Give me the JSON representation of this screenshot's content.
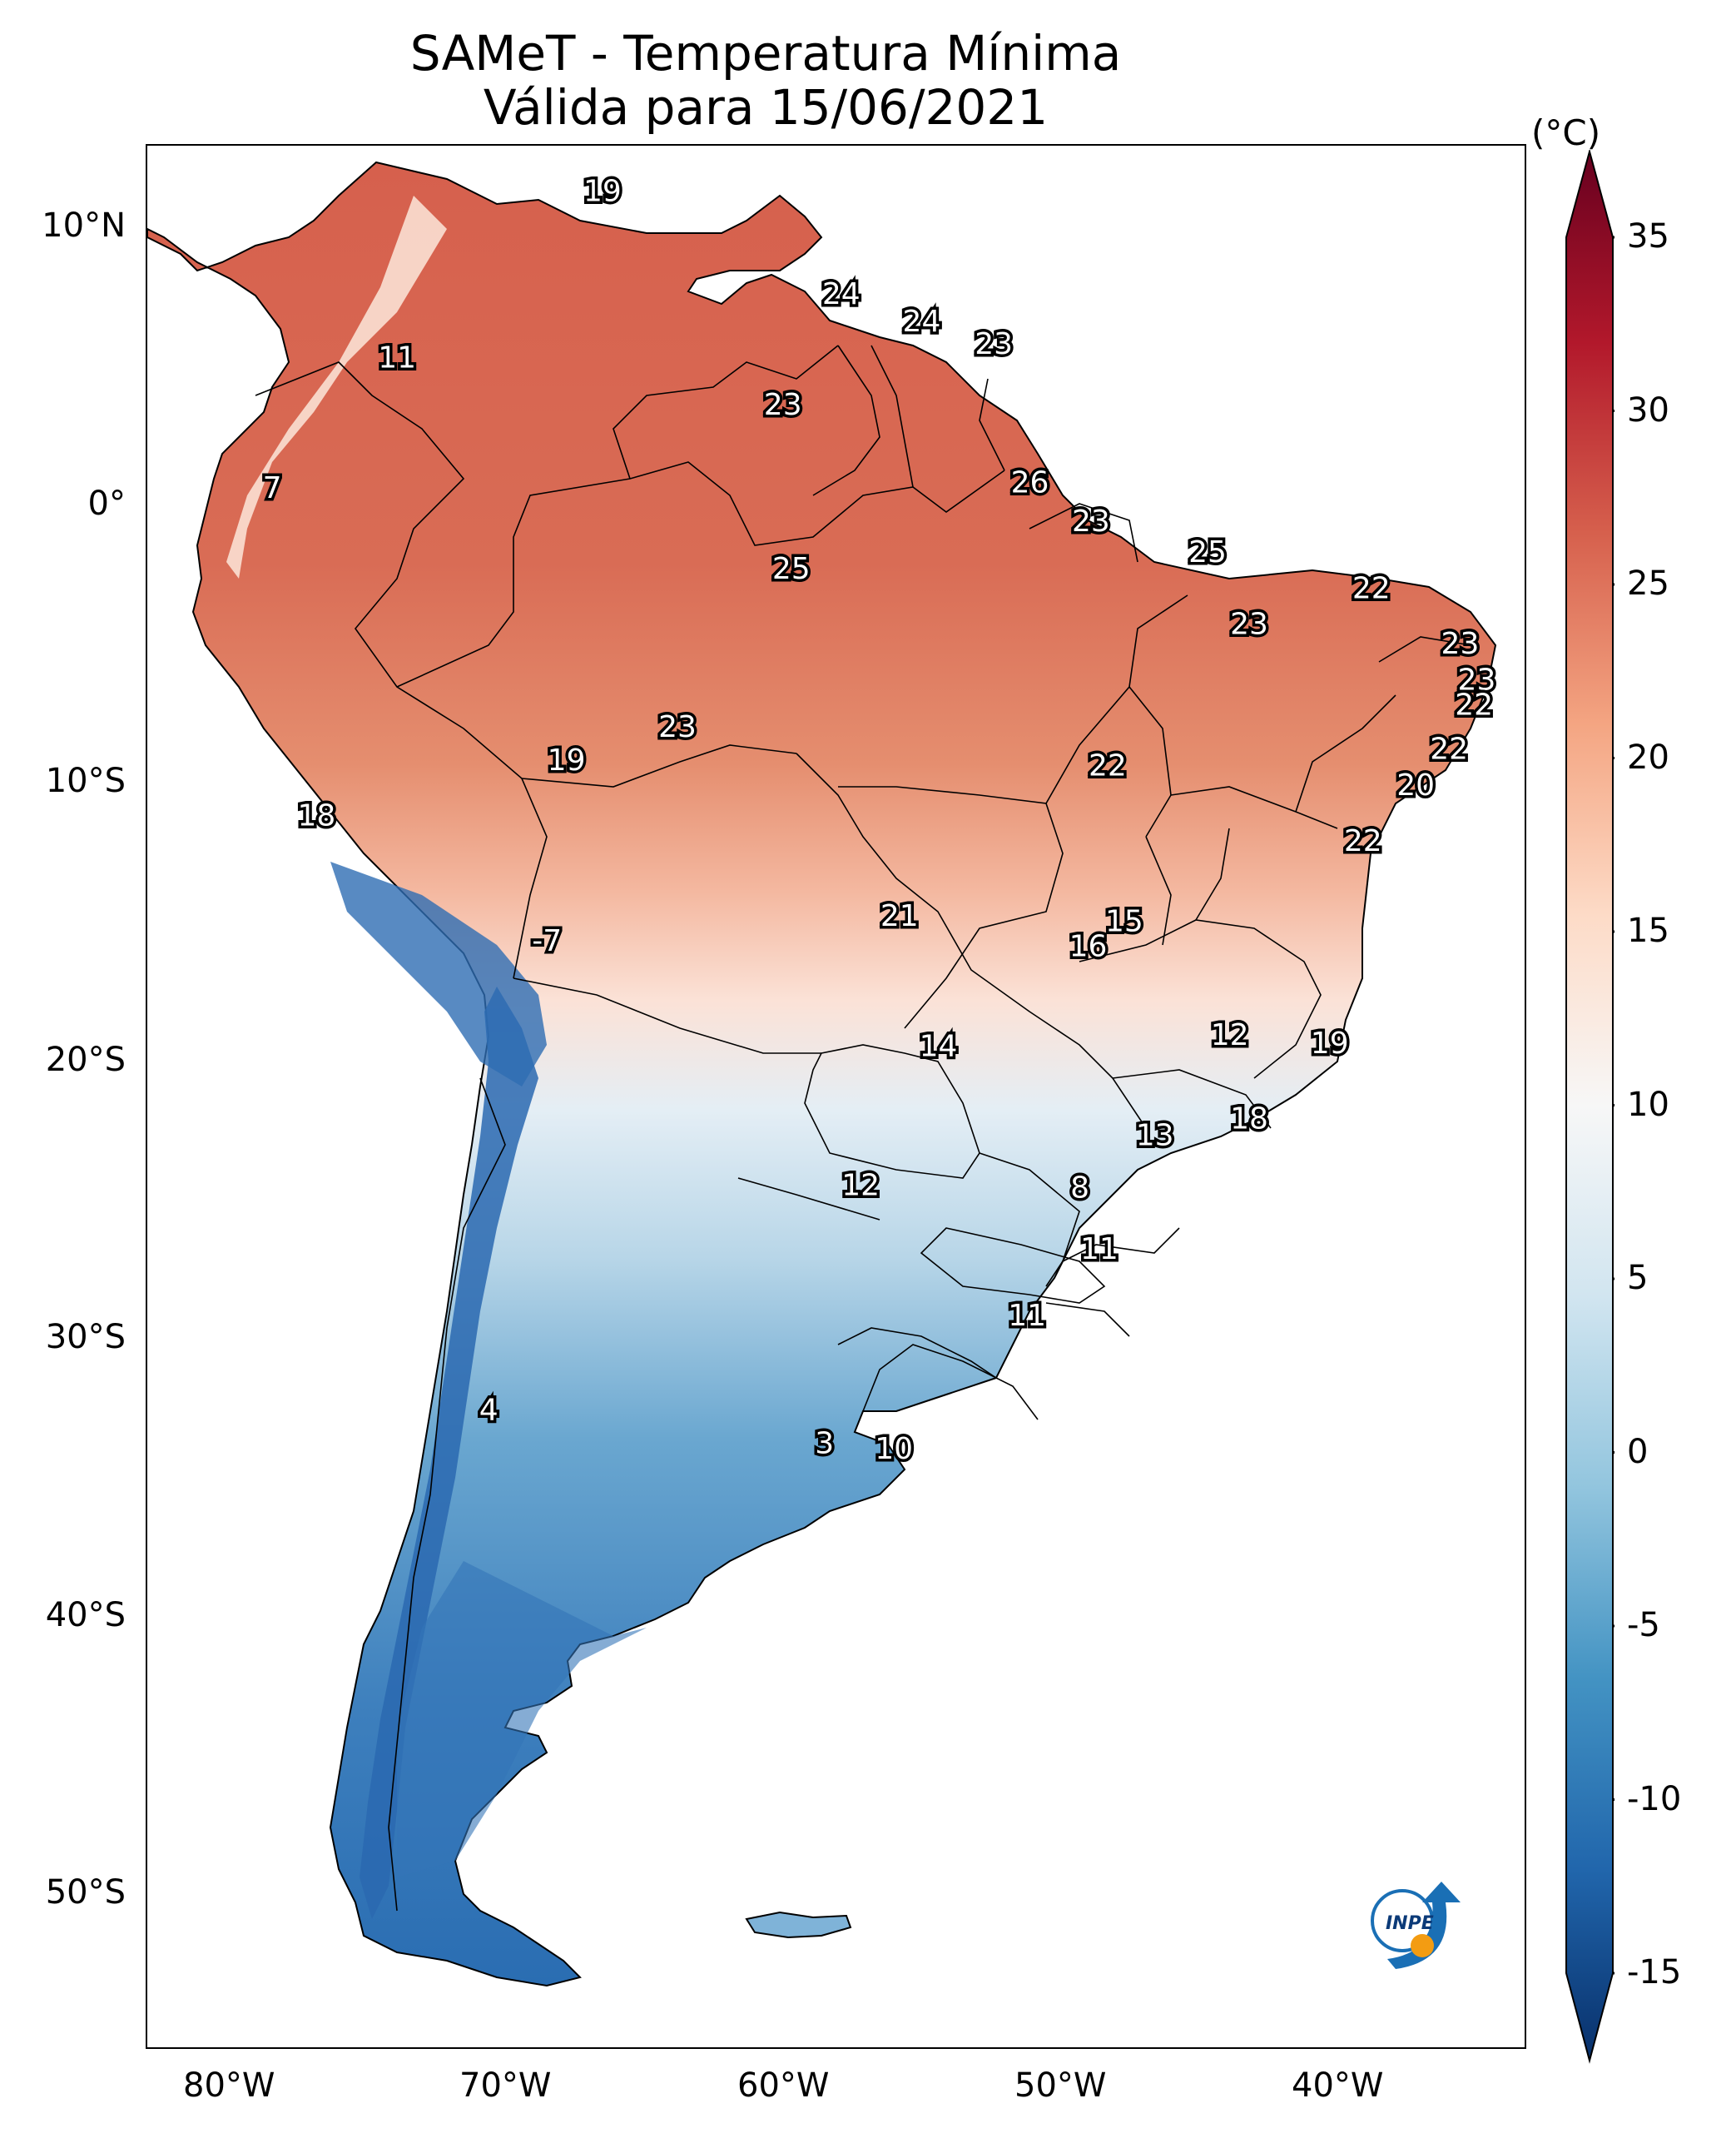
{
  "title": {
    "line1": "SAMeT - Temperatura Mínima",
    "line2": "Válida para 15/06/2021"
  },
  "units": "(°C)",
  "colorbar": {
    "ticks": [
      {
        "value": 35,
        "label": "35"
      },
      {
        "value": 30,
        "label": "30"
      },
      {
        "value": 25,
        "label": "25"
      },
      {
        "value": 20,
        "label": "20"
      },
      {
        "value": 15,
        "label": "15"
      },
      {
        "value": 10,
        "label": "10"
      },
      {
        "value": 5,
        "label": "5"
      },
      {
        "value": 0,
        "label": "0"
      },
      {
        "value": -5,
        "label": "-5"
      },
      {
        "value": -10,
        "label": "-10"
      },
      {
        "value": -15,
        "label": "-15"
      }
    ],
    "range": [
      -15,
      35
    ],
    "colors": [
      "#08306b",
      "#2166ac",
      "#4393c3",
      "#92c5de",
      "#d1e5f0",
      "#f7f7f7",
      "#fddbc7",
      "#f4a582",
      "#d6604d",
      "#b2182b",
      "#67001f"
    ]
  },
  "axes": {
    "lat_labels": [
      "10°N",
      "0°",
      "10°S",
      "20°S",
      "30°S",
      "40°S",
      "50°S"
    ],
    "lon_labels": [
      "80°W",
      "70°W",
      "60°W",
      "50°W",
      "40°W"
    ]
  },
  "logo_text": "INPE",
  "station_values": [
    {
      "label": "19",
      "lon": -66.5,
      "lat": 10.5
    },
    {
      "label": "24",
      "lon": -57.9,
      "lat": 6.8
    },
    {
      "label": "24",
      "lon": -55.0,
      "lat": 5.8
    },
    {
      "label": "23",
      "lon": -52.4,
      "lat": 5.0
    },
    {
      "label": "11",
      "lon": -73.9,
      "lat": 4.5
    },
    {
      "label": "23",
      "lon": -60.0,
      "lat": 2.8
    },
    {
      "label": "7",
      "lon": -78.4,
      "lat": -0.2
    },
    {
      "label": "26",
      "lon": -51.1,
      "lat": 0.0
    },
    {
      "label": "23",
      "lon": -48.9,
      "lat": -1.4
    },
    {
      "label": "25",
      "lon": -44.7,
      "lat": -2.5
    },
    {
      "label": "25",
      "lon": -59.7,
      "lat": -3.1
    },
    {
      "label": "22",
      "lon": -38.8,
      "lat": -3.8
    },
    {
      "label": "23",
      "lon": -43.2,
      "lat": -5.1
    },
    {
      "label": "23",
      "lon": -35.6,
      "lat": -5.8
    },
    {
      "label": "23",
      "lon": -35.0,
      "lat": -7.1
    },
    {
      "label": "22",
      "lon": -35.1,
      "lat": -8.0
    },
    {
      "label": "23",
      "lon": -63.8,
      "lat": -8.8
    },
    {
      "label": "22",
      "lon": -48.3,
      "lat": -10.2
    },
    {
      "label": "19",
      "lon": -67.8,
      "lat": -10.0
    },
    {
      "label": "22",
      "lon": -36.0,
      "lat": -9.6
    },
    {
      "label": "20",
      "lon": -37.2,
      "lat": -10.9
    },
    {
      "label": "22",
      "lon": -39.1,
      "lat": -12.9
    },
    {
      "label": "18",
      "lon": -76.8,
      "lat": -12.0
    },
    {
      "label": "21",
      "lon": -55.8,
      "lat": -15.6
    },
    {
      "label": "15",
      "lon": -47.7,
      "lat": -15.8
    },
    {
      "label": "16",
      "lon": -49.0,
      "lat": -16.7
    },
    {
      "label": "-7",
      "lon": -68.5,
      "lat": -16.5
    },
    {
      "label": "14",
      "lon": -54.4,
      "lat": -20.3
    },
    {
      "label": "12",
      "lon": -43.9,
      "lat": -19.9
    },
    {
      "label": "19",
      "lon": -40.3,
      "lat": -20.2
    },
    {
      "label": "18",
      "lon": -43.2,
      "lat": -22.9
    },
    {
      "label": "13",
      "lon": -46.6,
      "lat": -23.5
    },
    {
      "label": "12",
      "lon": -57.2,
      "lat": -25.3
    },
    {
      "label": "8",
      "lon": -49.3,
      "lat": -25.4
    },
    {
      "label": "11",
      "lon": -48.6,
      "lat": -27.6
    },
    {
      "label": "11",
      "lon": -51.2,
      "lat": -30.0
    },
    {
      "label": "4",
      "lon": -70.6,
      "lat": -33.4
    },
    {
      "label": "3",
      "lon": -58.5,
      "lat": -34.6
    },
    {
      "label": "10",
      "lon": -56.0,
      "lat": -34.8
    }
  ]
}
